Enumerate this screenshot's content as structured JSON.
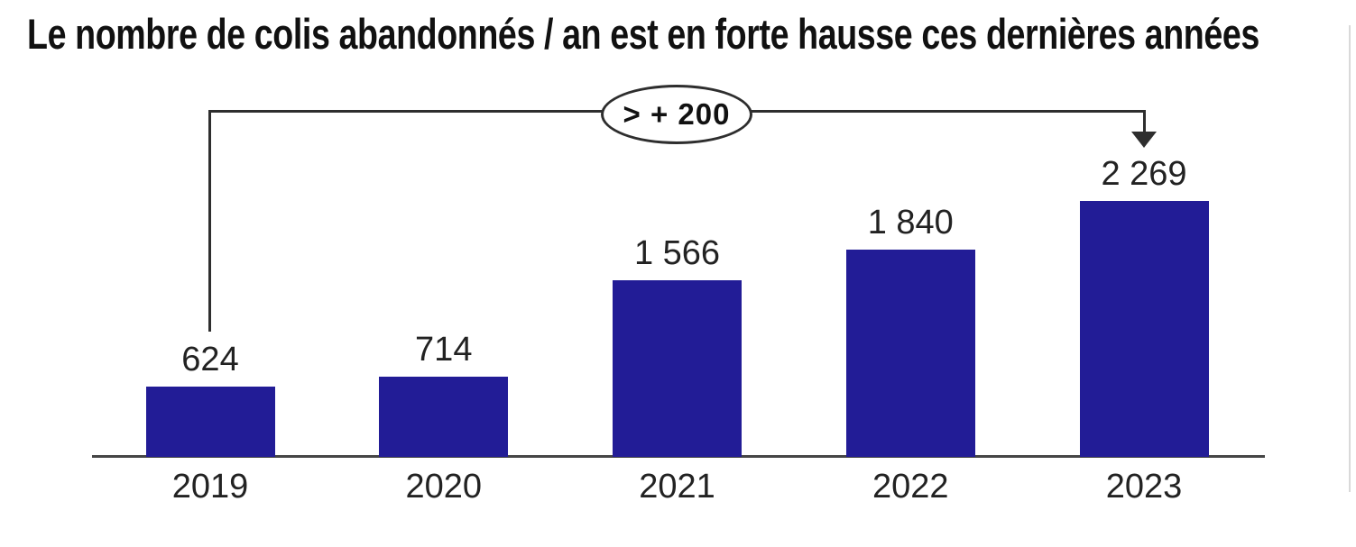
{
  "title": "Le nombre de colis abandonnés / an est en forte hausse ces dernières années",
  "annotation": {
    "label": "> + 200",
    "from_year": "2019",
    "to_year": "2023"
  },
  "chart_data": {
    "type": "bar",
    "title": "Le nombre de colis abandonnés / an est en forte hausse ces dernières années",
    "categories": [
      "2019",
      "2020",
      "2021",
      "2022",
      "2023"
    ],
    "values": [
      624,
      714,
      1566,
      1840,
      2269
    ],
    "value_labels": [
      "624",
      "714",
      "1 566",
      "1 840",
      "2 269"
    ],
    "xlabel": "",
    "ylabel": "",
    "ylim": [
      0,
      2269
    ],
    "grid": "off",
    "legend": "none",
    "annotation": "> + 200"
  },
  "colors": {
    "bar": "#221C96",
    "axis": "#454545",
    "annotation_line": "#2e2e2e",
    "text": "#222222",
    "title_text": "#111111"
  }
}
